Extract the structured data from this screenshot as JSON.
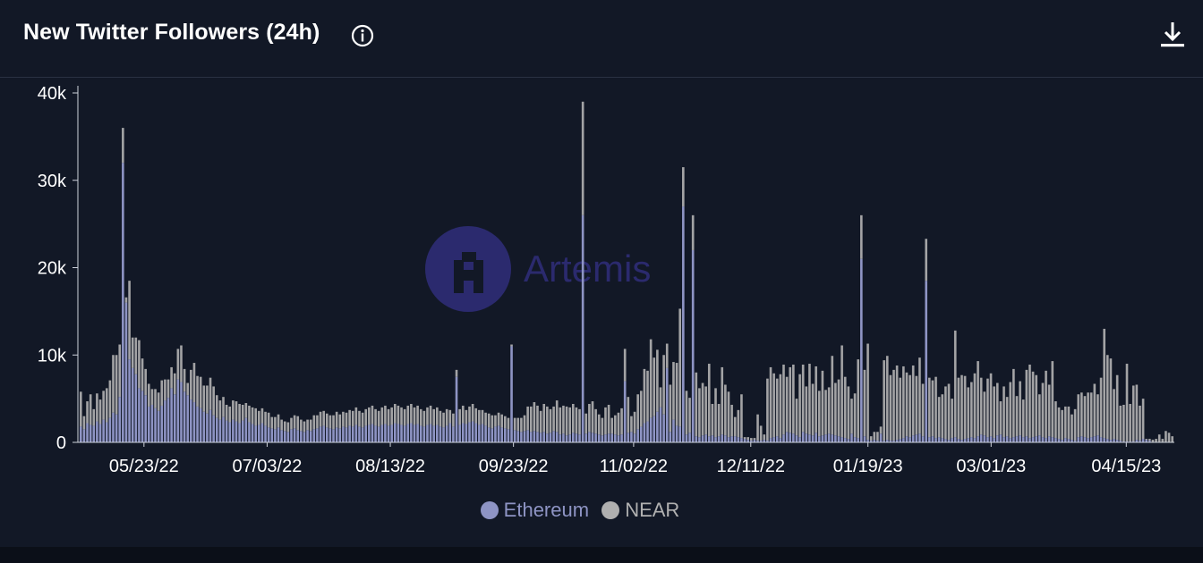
{
  "header": {
    "title": "New Twitter Followers (24h)",
    "info_icon": "info-circle-icon",
    "download_icon": "download-icon"
  },
  "watermark": {
    "text": "Artemis",
    "color": "#2b2a6e"
  },
  "colors": {
    "background": "#121826",
    "ethereum": "#8e94c4",
    "near": "#b0b0b0"
  },
  "chart_data": {
    "type": "bar",
    "stacked": true,
    "title": "New Twitter Followers (24h)",
    "x_start": "2022-05-01",
    "x_end": "2023-05-01",
    "x_ticks": [
      "05/23/22",
      "07/03/22",
      "08/13/22",
      "09/23/22",
      "11/02/22",
      "12/11/22",
      "01/19/23",
      "03/01/23",
      "04/15/23"
    ],
    "y_ticks": [
      "0",
      "10k",
      "20k",
      "30k",
      "40k"
    ],
    "ylim": [
      0,
      40000
    ],
    "legend": [
      "Ethereum",
      "NEAR"
    ],
    "legend_position": "bottom-center",
    "series": [
      {
        "name": "Ethereum",
        "color": "#8e94c4",
        "values": [
          1800,
          1500,
          2200,
          2000,
          1900,
          2400,
          2100,
          2600,
          2300,
          2800,
          3400,
          3200,
          5200,
          32000,
          16000,
          9500,
          8500,
          7800,
          6200,
          5900,
          5400,
          4100,
          4300,
          3900,
          3600,
          4200,
          4800,
          5100,
          6200,
          5500,
          7200,
          6900,
          5800,
          5400,
          4900,
          4600,
          4100,
          3900,
          3500,
          3300,
          3700,
          3100,
          2800,
          2600,
          2900,
          2500,
          2300,
          2600,
          2400,
          2200,
          2500,
          2800,
          2300,
          2100,
          1900,
          2000,
          2200,
          1900,
          1700,
          1600,
          1500,
          1700,
          1400,
          1300,
          1200,
          1500,
          1600,
          1400,
          1300,
          1200,
          1400,
          1300,
          1500,
          1600,
          1800,
          1900,
          1700,
          1600,
          1500,
          1700,
          1600,
          1800,
          1700,
          1900,
          1800,
          2000,
          1800,
          1700,
          1900,
          2000,
          2100,
          1900,
          1800,
          2000,
          2100,
          1900,
          2000,
          2200,
          2100,
          2000,
          1900,
          2100,
          2200,
          2000,
          2100,
          1900,
          1800,
          2000,
          2100,
          1900,
          2000,
          1800,
          1700,
          1900,
          2200,
          1800,
          7500,
          2000,
          2200,
          2100,
          2300,
          2400,
          2200,
          2000,
          2100,
          1900,
          1700,
          1600,
          1800,
          1900,
          1700,
          1600,
          1500,
          11000,
          1400,
          1300,
          1200,
          1300,
          1400,
          1200,
          1300,
          1200,
          1100,
          1200,
          1000,
          1100,
          1300,
          1200,
          900,
          1000,
          800,
          900,
          1100,
          1000,
          900,
          26000,
          1000,
          1200,
          1100,
          1000,
          900,
          800,
          900,
          1000,
          1000,
          900,
          800,
          900,
          7000,
          1100,
          1200,
          1000,
          1500,
          1800,
          2200,
          2400,
          2800,
          3000,
          3500,
          4000,
          3200,
          8500,
          1200,
          2600,
          1900,
          1800,
          27000,
          900,
          1100,
          22000,
          700,
          600,
          800,
          900,
          700,
          800,
          600,
          700,
          900,
          800,
          600,
          700,
          700,
          600,
          500,
          400,
          300,
          200,
          300,
          200,
          200,
          300,
          200,
          500,
          600,
          700,
          500,
          900,
          1200,
          1100,
          1000,
          800,
          600,
          1200,
          1000,
          900,
          800,
          1100,
          700,
          800,
          900,
          1000,
          900,
          800,
          700,
          600,
          500,
          400,
          1000,
          600,
          500,
          21000,
          700,
          300,
          200,
          300,
          200,
          1000,
          200,
          300,
          200,
          200,
          300,
          400,
          500,
          700,
          600,
          800,
          900,
          1000,
          700,
          18500,
          600,
          700,
          500,
          600,
          500,
          400,
          300,
          500,
          600,
          400,
          300,
          400,
          500,
          600,
          500,
          700,
          900,
          800,
          600,
          700,
          500,
          800,
          900,
          600,
          700,
          500,
          600,
          700,
          800,
          600,
          700,
          500,
          600,
          700,
          800,
          600,
          500,
          700,
          600,
          500,
          400,
          300,
          500,
          400,
          300,
          200,
          600,
          700,
          600,
          500,
          600,
          700,
          800,
          600,
          500,
          400,
          300,
          400,
          300,
          200,
          100,
          100,
          100,
          100,
          300,
          200,
          400,
          300,
          200
        ]
      },
      {
        "name": "NEAR",
        "color": "#b0b0b0",
        "values": [
          4000,
          1500,
          2500,
          3500,
          1900,
          3200,
          2800,
          3300,
          3900,
          4300,
          6600,
          6800,
          6000,
          4000,
          600,
          9000,
          3500,
          4200,
          5500,
          3700,
          3000,
          2600,
          1800,
          2200,
          2100,
          2900,
          2400,
          2100,
          2400,
          2400,
          3500,
          4200,
          2600,
          1400,
          3400,
          4500,
          3500,
          3600,
          3000,
          3200,
          3700,
          3300,
          2600,
          2200,
          2300,
          1800,
          1800,
          2200,
          2300,
          2200,
          1800,
          1700,
          1900,
          1900,
          2000,
          1600,
          1700,
          1600,
          1700,
          1300,
          1400,
          1500,
          1200,
          1100,
          1100,
          1300,
          1500,
          1600,
          1300,
          1200,
          1200,
          1300,
          1600,
          1500,
          1700,
          1700,
          1600,
          1500,
          1600,
          1800,
          1600,
          1700,
          1700,
          1800,
          1800,
          2000,
          1800,
          1700,
          1900,
          2000,
          2100,
          1900,
          1800,
          2000,
          2100,
          1900,
          2000,
          2200,
          2100,
          2000,
          1900,
          2100,
          2200,
          2000,
          2100,
          1900,
          1800,
          2000,
          2100,
          1900,
          2000,
          1800,
          1700,
          1900,
          1500,
          1500,
          800,
          1800,
          2000,
          1600,
          1800,
          2000,
          1700,
          1700,
          1600,
          1500,
          1600,
          1500,
          1300,
          1500,
          1500,
          1400,
          1300,
          200,
          1400,
          1500,
          1600,
          1800,
          2700,
          2900,
          3300,
          3000,
          2500,
          3200,
          3100,
          2700,
          2800,
          3600,
          3100,
          3200,
          3300,
          3100,
          3300,
          3000,
          2900,
          13000,
          2300,
          3200,
          3600,
          2800,
          2300,
          2000,
          3100,
          3300,
          1800,
          2200,
          2600,
          3000,
          3700,
          4100,
          1800,
          2500,
          4000,
          4100,
          6200,
          5800,
          9000,
          6700,
          7100,
          2300,
          6800,
          2800,
          5400,
          6600,
          7200,
          13500,
          4500,
          5000,
          4000,
          4000,
          7300,
          5600,
          6000,
          5500,
          8300,
          3600,
          5600,
          3700,
          7700,
          5800,
          5200,
          3600,
          2200,
          3100,
          5000,
          200,
          300,
          300,
          200,
          3000,
          1700,
          600,
          7100,
          8100,
          7300,
          6600,
          7300,
          8000,
          6300,
          7500,
          7900,
          4200,
          7200,
          7700,
          5400,
          8100,
          5900,
          7600,
          5200,
          7400,
          5100,
          5300,
          9000,
          6000,
          6500,
          10500,
          7000,
          6000,
          4000,
          5000,
          9000,
          5000,
          7600,
          11000,
          500,
          900,
          1000,
          800,
          9200,
          9600,
          7500,
          8100,
          8500,
          7000,
          8200,
          7300,
          7100,
          8000,
          6700,
          8700,
          6000,
          4800,
          6800,
          6400,
          7000,
          4600,
          5000,
          6000,
          6400,
          4500,
          12200,
          7000,
          7400,
          7200,
          5800,
          6300,
          7400,
          8600,
          6500,
          5000,
          6700,
          7200,
          5900,
          6000,
          3800,
          5800,
          4500,
          6400,
          7800,
          4600,
          6200,
          4300,
          7600,
          8400,
          7500,
          7000,
          4700,
          6200,
          7700,
          5900,
          8700,
          4200,
          3600,
          3400,
          3600,
          3700,
          2900,
          3600,
          4900,
          5000,
          4700,
          5200,
          5100,
          6000,
          4700,
          6800,
          12500,
          9600,
          9300,
          5700,
          7400,
          4000,
          4200,
          8900,
          4300,
          6400,
          6300,
          4000,
          4600,
          100,
          200,
          300,
          400,
          900,
          400,
          1300,
          1100,
          700
        ]
      }
    ]
  },
  "legend": {
    "ethereum_label": "Ethereum",
    "near_label": "NEAR"
  }
}
